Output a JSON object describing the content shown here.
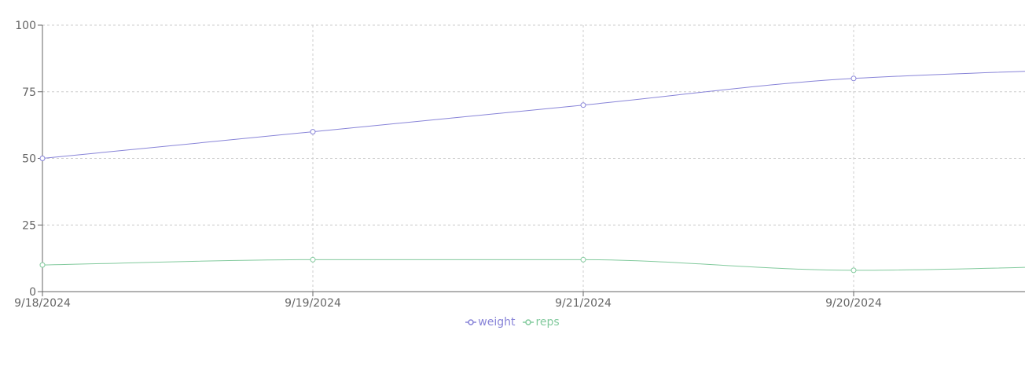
{
  "chart_data": {
    "type": "line",
    "categories": [
      "9/18/2024",
      "9/19/2024",
      "9/21/2024",
      "9/20/2024",
      ""
    ],
    "series": [
      {
        "name": "weight",
        "values": [
          50,
          60,
          70,
          80,
          84
        ],
        "color": "#8884d8"
      },
      {
        "name": "reps",
        "values": [
          10,
          12,
          12,
          8,
          10
        ],
        "color": "#82ca9d"
      }
    ],
    "ylim": [
      0,
      100
    ],
    "yticks": [
      0,
      25,
      50,
      75,
      100
    ],
    "grid": true,
    "legend": "bottom-center",
    "title": "",
    "xlabel": "",
    "ylabel": ""
  }
}
